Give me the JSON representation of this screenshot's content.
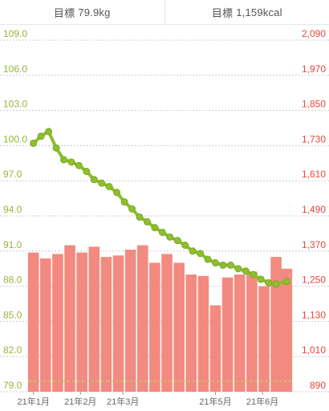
{
  "header": {
    "weight_goal_label": "目標",
    "weight_goal_value": "79.9kg",
    "calorie_goal_label": "目標",
    "calorie_goal_value": "1,159kcal"
  },
  "colors": {
    "weight": "#8fbe2f",
    "weight_axis": "#98b43a",
    "calories": "#f38a80",
    "calories_axis": "#e8473d",
    "grid": "#cccccc",
    "goal_line": "#b7cf6b"
  },
  "chart_data": {
    "type": "bar+line",
    "x_tick_labels": [
      "21年1月",
      "21年2月",
      "21年3月",
      "21年5月",
      "21年6月"
    ],
    "x_tick_days": [
      0,
      31,
      59,
      120,
      151
    ],
    "y_left": {
      "label": "",
      "ticks": [
        "79.0",
        "82.0",
        "85.0",
        "88.0",
        "91.0",
        "94.0",
        "97.0",
        "100.0",
        "103.0",
        "106.0",
        "109.0"
      ],
      "range": [
        79,
        109
      ]
    },
    "y_right": {
      "label": "",
      "ticks": [
        "890",
        "1,010",
        "1,130",
        "1,250",
        "1,370",
        "1,490",
        "1,610",
        "1,730",
        "1,850",
        "1,970",
        "2,090"
      ],
      "range": [
        890,
        2090
      ]
    },
    "series": [
      {
        "type": "bar",
        "axis": "right",
        "days": [
          0,
          8,
          16,
          24,
          32,
          40,
          48,
          56,
          64,
          72,
          80,
          88,
          96,
          104,
          112,
          120,
          128,
          136,
          144,
          152,
          160,
          167
        ],
        "values": [
          1365,
          1345,
          1360,
          1390,
          1365,
          1385,
          1350,
          1355,
          1375,
          1390,
          1330,
          1360,
          1330,
          1290,
          1285,
          1185,
          1280,
          1290,
          1300,
          1250,
          1350,
          1310
        ]
      },
      {
        "type": "line",
        "axis": "left",
        "days": [
          0,
          5,
          10,
          15,
          20,
          25,
          30,
          35,
          40,
          45,
          50,
          55,
          60,
          65,
          70,
          75,
          80,
          85,
          90,
          95,
          100,
          105,
          110,
          115,
          120,
          125,
          130,
          135,
          140,
          145,
          150,
          155,
          160,
          167
        ],
        "values": [
          100.2,
          100.8,
          101.2,
          99.8,
          98.8,
          98.6,
          98.3,
          97.8,
          97.1,
          96.8,
          96.5,
          96.0,
          95.2,
          94.6,
          93.9,
          93.5,
          93.0,
          92.6,
          92.2,
          91.9,
          91.5,
          91.0,
          90.8,
          90.3,
          90.0,
          89.8,
          89.8,
          89.5,
          89.3,
          89.0,
          88.6,
          88.3,
          88.2,
          88.4
        ]
      },
      {
        "type": "goal_line",
        "axis": "left",
        "value": 79.9
      }
    ]
  }
}
